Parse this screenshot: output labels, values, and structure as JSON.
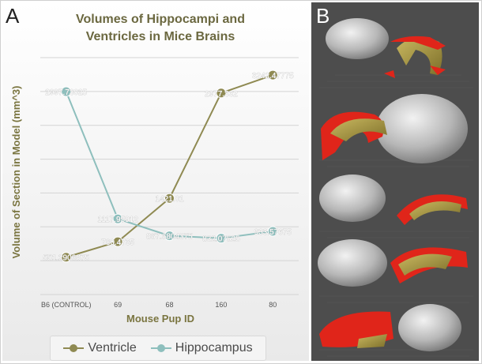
{
  "panel_a": {
    "letter": "A"
  },
  "panel_b": {
    "letter": "B"
  },
  "chart_data": {
    "type": "line",
    "title_lines": [
      "Volumes of Hippocampi and",
      "Ventricles in Mice Brains"
    ],
    "xlabel": "Mouse Pup ID",
    "ylabel": "Volume of Section in Model (mm^3)",
    "categories": [
      "B6 (CONTROL)",
      "69",
      "68",
      "160",
      "80"
    ],
    "ylim": [
      0,
      3500
    ],
    "grid": true,
    "legend_position": "bottom",
    "series": [
      {
        "name": "Ventricle",
        "color": "#8f8a52",
        "values": [
          551.2906875,
          780.4735,
          1421.01,
          2977.332,
          3242.47775
        ],
        "labels": [
          "551.2906875",
          "780.4735",
          "1421.01",
          "2977.332",
          "3242.47775"
        ]
      },
      {
        "name": "Hippocampus",
        "color": "#8ebfbd",
        "values": [
          2997.73025,
          1117.95912,
          867.6804375,
          832.07625,
          933.57675
        ],
        "labels": [
          "2997.73025",
          "1117.95912",
          "867.6804375",
          "832.07625",
          "933.57675"
        ]
      }
    ]
  }
}
